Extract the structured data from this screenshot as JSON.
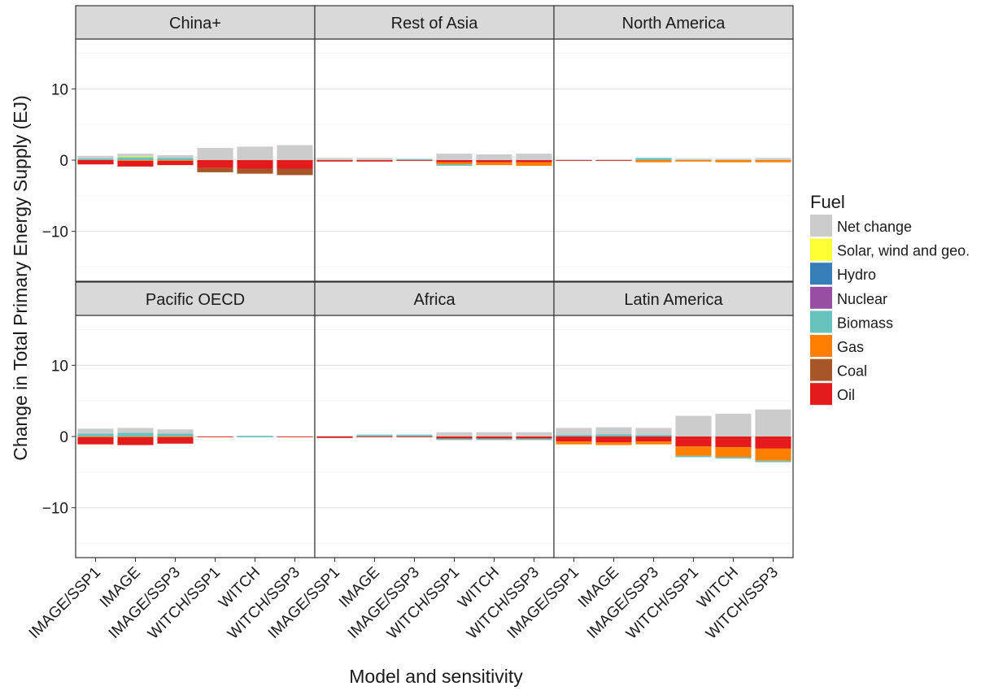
{
  "chart_data": {
    "type": "bar",
    "stacked": true,
    "faceted": true,
    "title": "",
    "xlabel": "Model and sensitivity",
    "ylabel": "Change in Total Primary Energy Supply (EJ)",
    "ylim": [
      -17,
      17
    ],
    "yticks": [
      -10,
      0,
      10
    ],
    "grid": true,
    "legend": {
      "title": "Fuel",
      "position": "right",
      "entries": [
        {
          "name": "Net change",
          "color": "#cccccc"
        },
        {
          "name": "Solar, wind and geo.",
          "color": "#ffff33"
        },
        {
          "name": "Hydro",
          "color": "#377eb8"
        },
        {
          "name": "Nuclear",
          "color": "#984ea3"
        },
        {
          "name": "Biomass",
          "color": "#66c2bd"
        },
        {
          "name": "Gas",
          "color": "#ff7f00"
        },
        {
          "name": "Coal",
          "color": "#a65628"
        },
        {
          "name": "Oil",
          "color": "#e41a1c"
        }
      ]
    },
    "categories": [
      "IMAGE/SSP1",
      "IMAGE",
      "IMAGE/SSP3",
      "WITCH/SSP1",
      "WITCH",
      "WITCH/SSP3"
    ],
    "panels": [
      {
        "title": "China+",
        "bars": [
          {
            "net": 0.6,
            "pos": [
              {
                "fuel": "Biomass",
                "value": 0.2
              }
            ],
            "neg": [
              {
                "fuel": "Oil",
                "value": -0.6
              }
            ]
          },
          {
            "net": 0.9,
            "pos": [
              {
                "fuel": "Biomass",
                "value": 0.4
              },
              {
                "fuel": "Solar, wind and geo.",
                "value": 0.1
              }
            ],
            "neg": [
              {
                "fuel": "Gas",
                "value": -0.1
              },
              {
                "fuel": "Oil",
                "value": -0.8
              }
            ]
          },
          {
            "net": 0.7,
            "pos": [
              {
                "fuel": "Biomass",
                "value": 0.3
              }
            ],
            "neg": [
              {
                "fuel": "Gas",
                "value": -0.1
              },
              {
                "fuel": "Oil",
                "value": -0.6
              }
            ]
          },
          {
            "net": 1.7,
            "pos": [],
            "neg": [
              {
                "fuel": "Oil",
                "value": -1.1
              },
              {
                "fuel": "Coal",
                "value": -0.6
              }
            ]
          },
          {
            "net": 1.9,
            "pos": [],
            "neg": [
              {
                "fuel": "Oil",
                "value": -1.2
              },
              {
                "fuel": "Coal",
                "value": -0.7
              }
            ]
          },
          {
            "net": 2.1,
            "pos": [],
            "neg": [
              {
                "fuel": "Oil",
                "value": -1.2
              },
              {
                "fuel": "Coal",
                "value": -0.9
              }
            ]
          }
        ]
      },
      {
        "title": "Rest of Asia",
        "bars": [
          {
            "net": 0.3,
            "pos": [],
            "neg": [
              {
                "fuel": "Oil",
                "value": -0.2
              }
            ]
          },
          {
            "net": 0.3,
            "pos": [],
            "neg": [
              {
                "fuel": "Oil",
                "value": -0.2
              }
            ]
          },
          {
            "net": 0.2,
            "pos": [
              {
                "fuel": "Biomass",
                "value": 0.1
              }
            ],
            "neg": [
              {
                "fuel": "Oil",
                "value": -0.1
              }
            ]
          },
          {
            "net": 0.9,
            "pos": [],
            "neg": [
              {
                "fuel": "Oil",
                "value": -0.3
              },
              {
                "fuel": "Gas",
                "value": -0.3
              },
              {
                "fuel": "Biomass",
                "value": -0.2
              }
            ]
          },
          {
            "net": 0.8,
            "pos": [],
            "neg": [
              {
                "fuel": "Oil",
                "value": -0.3
              },
              {
                "fuel": "Gas",
                "value": -0.4
              }
            ]
          },
          {
            "net": 0.9,
            "pos": [],
            "neg": [
              {
                "fuel": "Oil",
                "value": -0.3
              },
              {
                "fuel": "Gas",
                "value": -0.5
              }
            ]
          }
        ]
      },
      {
        "title": "North America",
        "bars": [
          {
            "net": 0.1,
            "pos": [],
            "neg": [
              {
                "fuel": "Oil",
                "value": -0.1
              }
            ]
          },
          {
            "net": 0.1,
            "pos": [],
            "neg": [
              {
                "fuel": "Oil",
                "value": -0.1
              }
            ]
          },
          {
            "net": 0.3,
            "pos": [
              {
                "fuel": "Biomass",
                "value": 0.3
              }
            ],
            "neg": [
              {
                "fuel": "Gas",
                "value": -0.3
              }
            ]
          },
          {
            "net": 0.2,
            "pos": [],
            "neg": [
              {
                "fuel": "Gas",
                "value": -0.2
              }
            ]
          },
          {
            "net": 0.2,
            "pos": [],
            "neg": [
              {
                "fuel": "Gas",
                "value": -0.3
              }
            ]
          },
          {
            "net": 0.3,
            "pos": [],
            "neg": [
              {
                "fuel": "Gas",
                "value": -0.3
              }
            ]
          }
        ]
      },
      {
        "title": "Pacific OECD",
        "bars": [
          {
            "net": 1.1,
            "pos": [
              {
                "fuel": "Biomass",
                "value": 0.4
              }
            ],
            "neg": [
              {
                "fuel": "Gas",
                "value": -0.1
              },
              {
                "fuel": "Oil",
                "value": -1.0
              }
            ]
          },
          {
            "net": 1.2,
            "pos": [
              {
                "fuel": "Biomass",
                "value": 0.5
              }
            ],
            "neg": [
              {
                "fuel": "Gas",
                "value": -0.1
              },
              {
                "fuel": "Oil",
                "value": -1.1
              }
            ]
          },
          {
            "net": 1.0,
            "pos": [
              {
                "fuel": "Biomass",
                "value": 0.4
              }
            ],
            "neg": [
              {
                "fuel": "Gas",
                "value": -0.1
              },
              {
                "fuel": "Oil",
                "value": -0.9
              }
            ]
          },
          {
            "net": 0.05,
            "pos": [],
            "neg": [
              {
                "fuel": "Oil",
                "value": -0.05
              }
            ]
          },
          {
            "net": 0.05,
            "pos": [
              {
                "fuel": "Biomass",
                "value": 0.1
              }
            ],
            "neg": [
              {
                "fuel": "Biomass",
                "value": -0.1
              }
            ]
          },
          {
            "net": 0.05,
            "pos": [],
            "neg": [
              {
                "fuel": "Oil",
                "value": -0.05
              }
            ]
          }
        ]
      },
      {
        "title": "Africa",
        "bars": [
          {
            "net": 0.1,
            "pos": [],
            "neg": [
              {
                "fuel": "Oil",
                "value": -0.2
              }
            ]
          },
          {
            "net": 0.3,
            "pos": [
              {
                "fuel": "Biomass",
                "value": 0.2
              }
            ],
            "neg": [
              {
                "fuel": "Oil",
                "value": -0.1
              }
            ]
          },
          {
            "net": 0.3,
            "pos": [
              {
                "fuel": "Biomass",
                "value": 0.2
              }
            ],
            "neg": [
              {
                "fuel": "Oil",
                "value": -0.1
              }
            ]
          },
          {
            "net": 0.6,
            "pos": [],
            "neg": [
              {
                "fuel": "Oil",
                "value": -0.3
              },
              {
                "fuel": "Biomass",
                "value": -0.2
              }
            ]
          },
          {
            "net": 0.6,
            "pos": [],
            "neg": [
              {
                "fuel": "Oil",
                "value": -0.3
              },
              {
                "fuel": "Biomass",
                "value": -0.2
              }
            ]
          },
          {
            "net": 0.6,
            "pos": [],
            "neg": [
              {
                "fuel": "Oil",
                "value": -0.3
              },
              {
                "fuel": "Biomass",
                "value": -0.2
              }
            ]
          }
        ]
      },
      {
        "title": "Latin America",
        "bars": [
          {
            "net": 1.2,
            "pos": [
              {
                "fuel": "Biomass",
                "value": 0.2
              }
            ],
            "neg": [
              {
                "fuel": "Oil",
                "value": -0.7
              },
              {
                "fuel": "Gas",
                "value": -0.4
              }
            ]
          },
          {
            "net": 1.3,
            "pos": [
              {
                "fuel": "Biomass",
                "value": 0.3
              }
            ],
            "neg": [
              {
                "fuel": "Oil",
                "value": -0.8
              },
              {
                "fuel": "Gas",
                "value": -0.4
              }
            ]
          },
          {
            "net": 1.2,
            "pos": [
              {
                "fuel": "Biomass",
                "value": 0.2
              }
            ],
            "neg": [
              {
                "fuel": "Oil",
                "value": -0.7
              },
              {
                "fuel": "Gas",
                "value": -0.4
              }
            ]
          },
          {
            "net": 2.9,
            "pos": [],
            "neg": [
              {
                "fuel": "Oil",
                "value": -1.4
              },
              {
                "fuel": "Gas",
                "value": -1.3
              },
              {
                "fuel": "Biomass",
                "value": -0.2
              }
            ]
          },
          {
            "net": 3.2,
            "pos": [],
            "neg": [
              {
                "fuel": "Oil",
                "value": -1.5
              },
              {
                "fuel": "Gas",
                "value": -1.4
              },
              {
                "fuel": "Biomass",
                "value": -0.2
              }
            ]
          },
          {
            "net": 3.8,
            "pos": [],
            "neg": [
              {
                "fuel": "Oil",
                "value": -1.7
              },
              {
                "fuel": "Gas",
                "value": -1.7
              },
              {
                "fuel": "Biomass",
                "value": -0.2
              }
            ]
          }
        ]
      }
    ]
  }
}
